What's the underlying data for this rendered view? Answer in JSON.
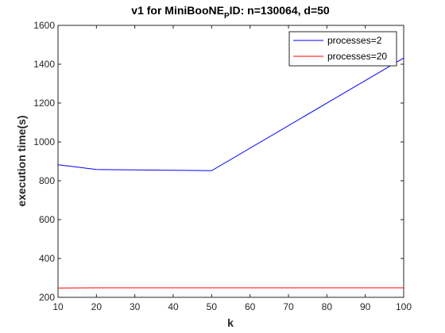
{
  "chart_data": {
    "type": "line",
    "title": {
      "prefix": "v1 for MiniBooNE",
      "subscript": "P",
      "suffix": "ID: n=130064, d=50"
    },
    "xlabel": "k",
    "ylabel": "execution time(s)",
    "xlim": [
      10,
      100
    ],
    "ylim": [
      200,
      1600
    ],
    "xticks": [
      10,
      20,
      30,
      40,
      50,
      60,
      70,
      80,
      90,
      100
    ],
    "yticks": [
      200,
      400,
      600,
      800,
      1000,
      1200,
      1400,
      1600
    ],
    "grid": false,
    "legend_position": "top-right",
    "series": [
      {
        "name": "processes=2",
        "color": "#0000ff",
        "x": [
          10,
          20,
          50,
          100
        ],
        "y": [
          883,
          858,
          852,
          1432
        ]
      },
      {
        "name": "processes=20",
        "color": "#ff0000",
        "x": [
          10,
          20,
          50,
          100
        ],
        "y": [
          248,
          249,
          249,
          249
        ]
      }
    ]
  }
}
